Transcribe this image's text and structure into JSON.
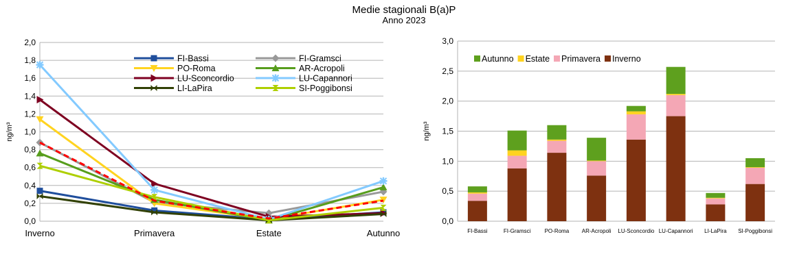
{
  "title": "Medie stagionali B(a)P",
  "subtitle": "Anno 2023",
  "chart_data": [
    {
      "type": "line",
      "ylabel": "ng/m³",
      "ylim": [
        0,
        2.0
      ],
      "yticks": [
        "0,0",
        "0,2",
        "0,4",
        "0,6",
        "0,8",
        "1,0",
        "1,2",
        "1,4",
        "1,6",
        "1,8",
        "2,0"
      ],
      "categories": [
        "Inverno",
        "Primavera",
        "Estate",
        "Autunno"
      ],
      "grid": true,
      "legend_position": "top-center",
      "series": [
        {
          "name": "FI-Bassi",
          "color": "#1f4e9c",
          "marker": "square",
          "values": [
            0.34,
            0.12,
            0.02,
            0.1
          ]
        },
        {
          "name": "FI-Gramsci",
          "color": "#999999",
          "marker": "diamond",
          "values": [
            0.88,
            0.21,
            0.09,
            0.33
          ]
        },
        {
          "name": "PO-Roma",
          "color": "#ffd320",
          "marker": "triangle-down",
          "values": [
            1.14,
            0.2,
            0.02,
            0.24
          ]
        },
        {
          "name": "AR-Acropoli",
          "color": "#579d1c",
          "marker": "triangle-up",
          "values": [
            0.76,
            0.24,
            0.01,
            0.38
          ]
        },
        {
          "name": "LU-Sconcordio",
          "color": "#7e0021",
          "marker": "arrow-right",
          "values": [
            1.36,
            0.42,
            0.05,
            0.09
          ]
        },
        {
          "name": "LU-Capannori",
          "color": "#83caff",
          "marker": "star",
          "values": [
            1.75,
            0.35,
            0.02,
            0.45
          ]
        },
        {
          "name": "LI-LaPira",
          "color": "#314004",
          "marker": "bowtie",
          "values": [
            0.28,
            0.1,
            0.01,
            0.08
          ]
        },
        {
          "name": "SI-Poggibonsi",
          "color": "#aecf00",
          "marker": "hourglass",
          "values": [
            0.62,
            0.27,
            0.01,
            0.15
          ]
        },
        {
          "name": "",
          "color": "#ff0000",
          "dashed": true,
          "marker": "none",
          "values": [
            0.88,
            0.23,
            0.03,
            0.23
          ]
        }
      ]
    },
    {
      "type": "bar",
      "stacked": true,
      "ylabel": "ng/m³",
      "ylim": [
        0,
        3.0
      ],
      "yticks": [
        "0,0",
        "0,5",
        "1,0",
        "1,5",
        "2,0",
        "2,5",
        "3,0"
      ],
      "categories": [
        "FI-Bassi",
        "FI-Gramsci",
        "PO-Roma",
        "AR-Acropoli",
        "LU-Sconcordio",
        "LU-Capannori",
        "LI-LaPira",
        "SI-Poggibonsi"
      ],
      "grid": true,
      "legend_position": "top-left",
      "series": [
        {
          "name": "Inverno",
          "color": "#7e3110",
          "values": [
            0.34,
            0.88,
            1.14,
            0.76,
            1.36,
            1.75,
            0.28,
            0.62
          ]
        },
        {
          "name": "Primavera",
          "color": "#f4a7b5",
          "values": [
            0.12,
            0.21,
            0.2,
            0.24,
            0.42,
            0.35,
            0.1,
            0.27
          ]
        },
        {
          "name": "Estate",
          "color": "#ffd320",
          "values": [
            0.02,
            0.09,
            0.02,
            0.01,
            0.05,
            0.02,
            0.01,
            0.01
          ]
        },
        {
          "name": "Autunno",
          "color": "#5ea01e",
          "values": [
            0.1,
            0.33,
            0.24,
            0.38,
            0.09,
            0.45,
            0.08,
            0.15
          ]
        }
      ],
      "legend_order": [
        "Autunno",
        "Estate",
        "Primavera",
        "Inverno"
      ]
    }
  ]
}
